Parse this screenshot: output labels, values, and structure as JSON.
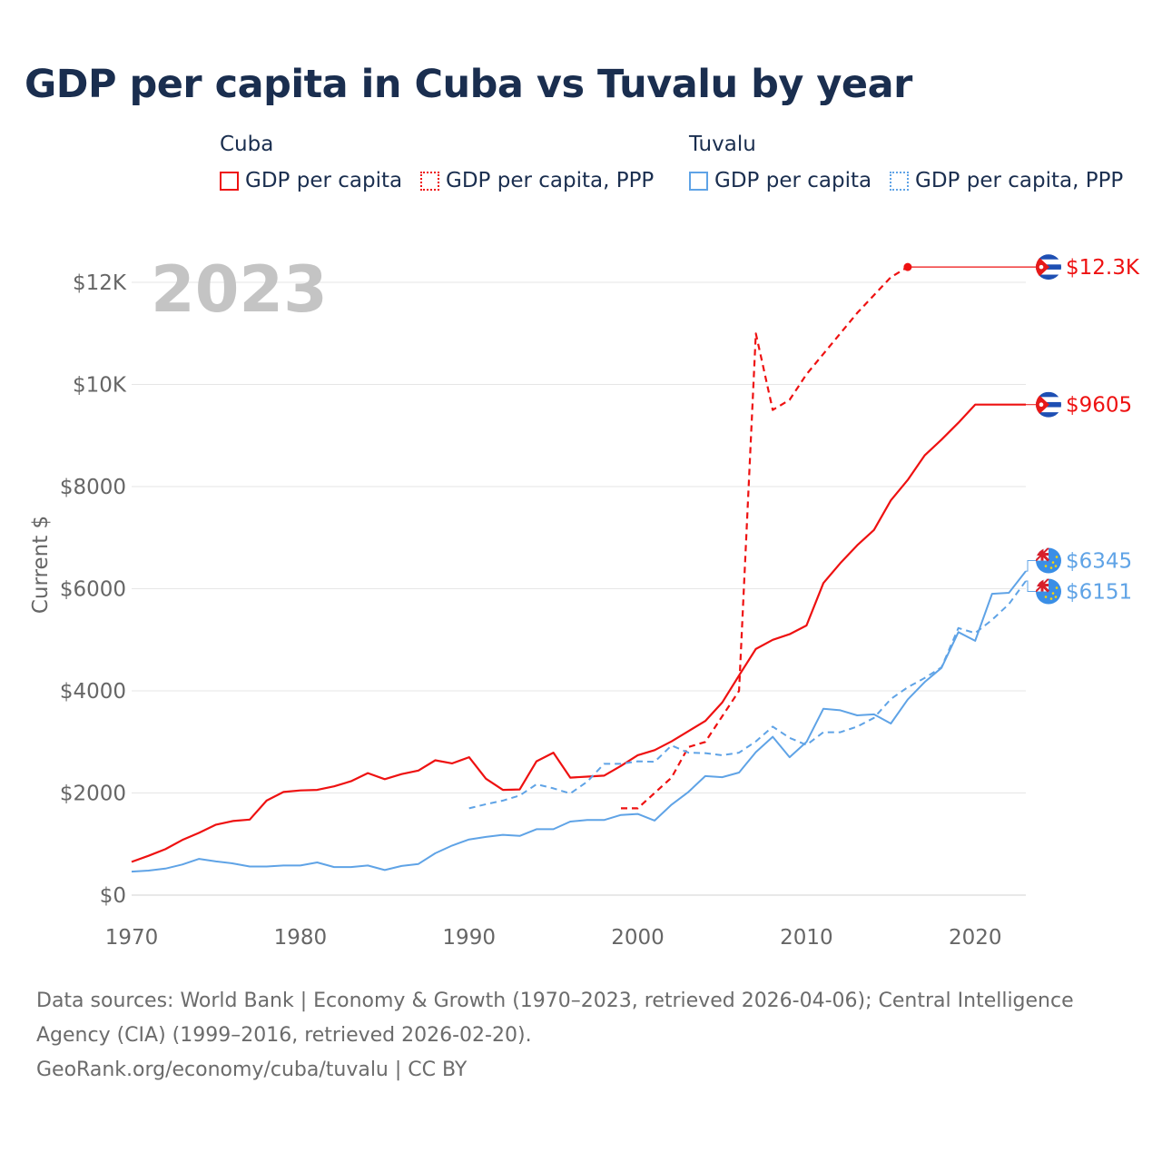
{
  "title": "GDP per capita in Cuba vs Tuvalu by year",
  "colors": {
    "cuba": "#ee1111",
    "tuvalu": "#5fa3e6",
    "grid": "#e6e6e6",
    "axis_text": "#666666",
    "year_watermark": "#c4c4c4"
  },
  "legend": {
    "groups": [
      {
        "name": "Cuba",
        "items": [
          {
            "label": "GDP per capita",
            "style": "solid"
          },
          {
            "label": "GDP per capita, PPP",
            "style": "dotted"
          }
        ]
      },
      {
        "name": "Tuvalu",
        "items": [
          {
            "label": "GDP per capita",
            "style": "solid"
          },
          {
            "label": "GDP per capita, PPP",
            "style": "dotted"
          }
        ]
      }
    ]
  },
  "chart_data": {
    "type": "line",
    "title": "GDP per capita in Cuba vs Tuvalu by year",
    "year_label": "2023",
    "ylabel": "Current $",
    "xlabel": "",
    "xlim": [
      1970,
      2023
    ],
    "ylim": [
      0,
      12500
    ],
    "x_ticks": [
      1970,
      1980,
      1990,
      2000,
      2010,
      2020
    ],
    "y_ticks": [
      {
        "value": 0,
        "label": "$0"
      },
      {
        "value": 2000,
        "label": "$2000"
      },
      {
        "value": 4000,
        "label": "$4000"
      },
      {
        "value": 6000,
        "label": "$6000"
      },
      {
        "value": 8000,
        "label": "$8000"
      },
      {
        "value": 10000,
        "label": "$10K"
      },
      {
        "value": 12000,
        "label": "$12K"
      }
    ],
    "series": [
      {
        "name": "Cuba GDP per capita",
        "country": "cuba",
        "dash": "solid",
        "x": [
          1970,
          1971,
          1972,
          1973,
          1974,
          1975,
          1976,
          1977,
          1978,
          1979,
          1980,
          1981,
          1982,
          1983,
          1984,
          1985,
          1986,
          1987,
          1988,
          1989,
          1990,
          1991,
          1992,
          1993,
          1994,
          1995,
          1996,
          1997,
          1998,
          1999,
          2000,
          2001,
          2002,
          2003,
          2004,
          2005,
          2006,
          2007,
          2008,
          2009,
          2010,
          2011,
          2012,
          2013,
          2014,
          2015,
          2016,
          2017,
          2018,
          2019,
          2020,
          2021,
          2022,
          2023
        ],
        "values": [
          650,
          770,
          900,
          1080,
          1220,
          1380,
          1450,
          1480,
          1850,
          2020,
          2050,
          2060,
          2130,
          2230,
          2390,
          2270,
          2370,
          2440,
          2640,
          2580,
          2700,
          2280,
          2060,
          2070,
          2620,
          2790,
          2300,
          2320,
          2340,
          2530,
          2740,
          2840,
          3010,
          3210,
          3410,
          3770,
          4300,
          4820,
          5000,
          5110,
          5280,
          6110,
          6500,
          6850,
          7150,
          7730,
          8130,
          8610,
          8920,
          9250,
          9605,
          9605,
          9605,
          9605
        ],
        "end_label": "$9605",
        "end_value": 9605,
        "end_year": 2023
      },
      {
        "name": "Cuba GDP per capita, PPP",
        "country": "cuba",
        "dash": "dashed",
        "x": [
          1999,
          2000,
          2001,
          2002,
          2003,
          2004,
          2005,
          2006,
          2007,
          2008,
          2009,
          2010,
          2011,
          2012,
          2013,
          2014,
          2015,
          2016
        ],
        "values": [
          1700,
          1700,
          2000,
          2300,
          2900,
          3000,
          3500,
          4000,
          11000,
          9500,
          9700,
          10200,
          10600,
          11000,
          11400,
          11750,
          12100,
          12300
        ],
        "end_label": "$12.3K",
        "end_value": 12300,
        "end_year": 2016
      },
      {
        "name": "Tuvalu GDP per capita",
        "country": "tuvalu",
        "dash": "solid",
        "x": [
          1970,
          1971,
          1972,
          1973,
          1974,
          1975,
          1976,
          1977,
          1978,
          1979,
          1980,
          1981,
          1982,
          1983,
          1984,
          1985,
          1986,
          1987,
          1988,
          1989,
          1990,
          1991,
          1992,
          1993,
          1994,
          1995,
          1996,
          1997,
          1998,
          1999,
          2000,
          2001,
          2002,
          2003,
          2004,
          2005,
          2006,
          2007,
          2008,
          2009,
          2010,
          2011,
          2012,
          2013,
          2014,
          2015,
          2016,
          2017,
          2018,
          2019,
          2020,
          2021,
          2022,
          2023
        ],
        "values": [
          460,
          480,
          520,
          600,
          710,
          660,
          620,
          560,
          560,
          580,
          580,
          640,
          550,
          550,
          580,
          490,
          570,
          610,
          820,
          970,
          1090,
          1140,
          1180,
          1160,
          1290,
          1290,
          1440,
          1470,
          1470,
          1570,
          1590,
          1460,
          1770,
          2020,
          2330,
          2310,
          2400,
          2800,
          3100,
          2700,
          3000,
          3650,
          3620,
          3520,
          3540,
          3360,
          3830,
          4170,
          4450,
          5150,
          4980,
          5900,
          5920,
          6345
        ],
        "end_label": "$6345",
        "end_value": 6345,
        "end_year": 2023
      },
      {
        "name": "Tuvalu GDP per capita, PPP",
        "country": "tuvalu",
        "dash": "dashed",
        "x": [
          1990,
          1991,
          1992,
          1993,
          1994,
          1995,
          1996,
          1997,
          1998,
          1999,
          2000,
          2001,
          2002,
          2003,
          2004,
          2005,
          2006,
          2007,
          2008,
          2009,
          2010,
          2011,
          2012,
          2013,
          2014,
          2015,
          2016,
          2017,
          2018,
          2019,
          2020,
          2021,
          2022,
          2023
        ],
        "values": [
          1700,
          1780,
          1850,
          1950,
          2170,
          2090,
          1990,
          2220,
          2570,
          2570,
          2620,
          2610,
          2930,
          2790,
          2780,
          2740,
          2790,
          3010,
          3300,
          3080,
          2940,
          3190,
          3190,
          3300,
          3470,
          3840,
          4070,
          4250,
          4460,
          5230,
          5130,
          5390,
          5700,
          6151
        ],
        "end_label": "$6151",
        "end_value": 6151,
        "end_year": 2023
      }
    ]
  },
  "footer": {
    "sources_line1": "Data sources: World Bank | Economy & Growth (1970–2023, retrieved 2026-04-06); Central Intelligence",
    "sources_line2": "Agency (CIA) (1999–2016, retrieved 2026-02-20).",
    "credit": "GeoRank.org/economy/cuba/tuvalu | CC BY"
  }
}
